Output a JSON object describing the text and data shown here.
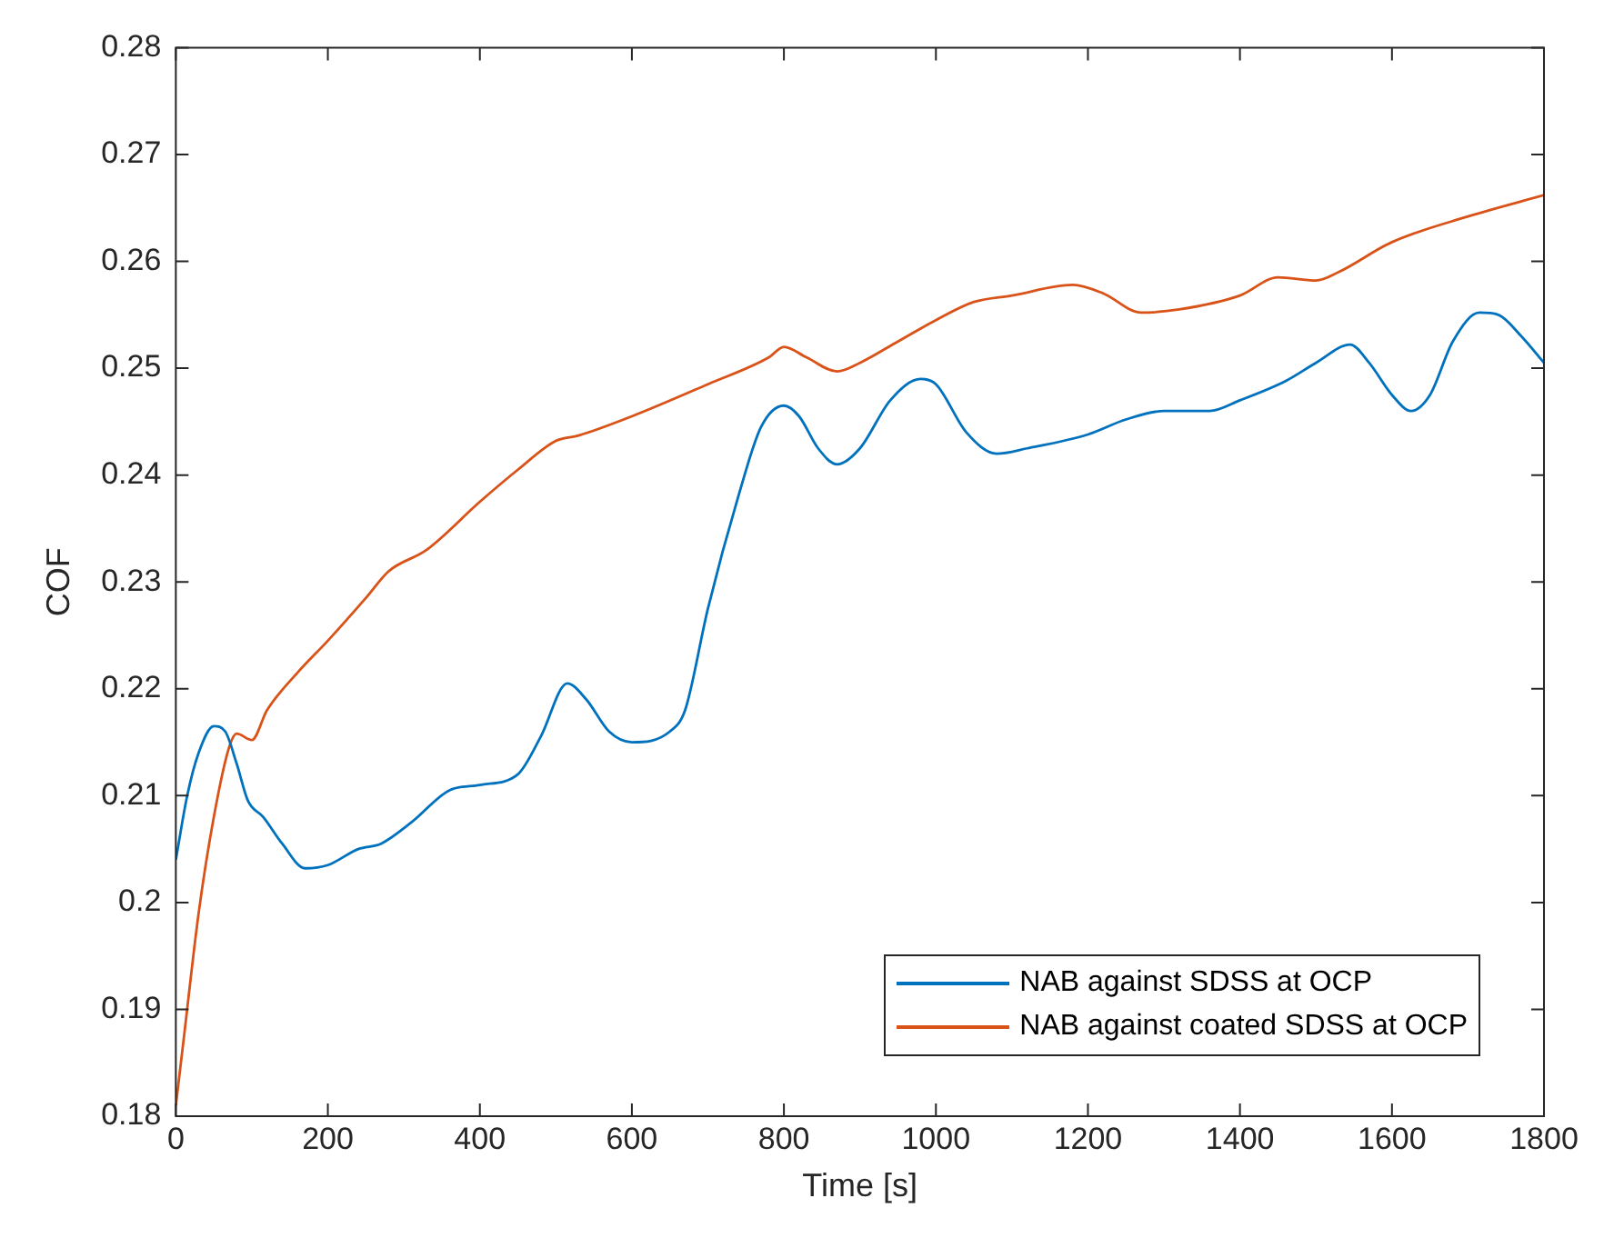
{
  "chart_data": {
    "type": "line",
    "xlabel": "Time [s]",
    "ylabel": "COF",
    "xlim": [
      0,
      1800
    ],
    "xticks": [
      0,
      200,
      400,
      600,
      800,
      1000,
      1200,
      1400,
      1600,
      1800
    ],
    "ylim": [
      0.18,
      0.28
    ],
    "yticks": [
      0.18,
      0.19,
      0.2,
      0.21,
      0.22,
      0.23,
      0.24,
      0.25,
      0.26,
      0.27,
      0.28
    ],
    "grid": false,
    "legend": "bottom right",
    "marker": "none",
    "line_style": "solid",
    "series": [
      {
        "name": "NAB against SDSS at OCP",
        "color": "#0072bd",
        "x": [
          0,
          15,
          30,
          50,
          65,
          80,
          95,
          115,
          140,
          170,
          200,
          240,
          270,
          310,
          360,
          400,
          450,
          480,
          515,
          540,
          570,
          600,
          650,
          670,
          700,
          740,
          770,
          800,
          820,
          845,
          870,
          900,
          940,
          980,
          1000,
          1040,
          1080,
          1120,
          1200,
          1250,
          1300,
          1360,
          1400,
          1460,
          1500,
          1545,
          1570,
          1600,
          1625,
          1650,
          1680,
          1715,
          1740,
          1770,
          1800
        ],
        "values": [
          0.204,
          0.21,
          0.214,
          0.2165,
          0.216,
          0.213,
          0.2095,
          0.208,
          0.2055,
          0.2032,
          0.2035,
          0.205,
          0.2055,
          0.2075,
          0.2105,
          0.211,
          0.212,
          0.2155,
          0.2205,
          0.219,
          0.216,
          0.215,
          0.216,
          0.218,
          0.2275,
          0.238,
          0.2445,
          0.2465,
          0.2455,
          0.2425,
          0.241,
          0.2425,
          0.247,
          0.249,
          0.2485,
          0.244,
          0.242,
          0.2425,
          0.2438,
          0.2452,
          0.246,
          0.246,
          0.247,
          0.2488,
          0.2505,
          0.2522,
          0.2505,
          0.2475,
          0.246,
          0.2475,
          0.2525,
          0.2552,
          0.255,
          0.253,
          0.2505
        ]
      },
      {
        "name": "NAB against coated SDSS at OCP",
        "color": "#d95319",
        "x": [
          0,
          10,
          30,
          50,
          70,
          80,
          100,
          120,
          160,
          200,
          250,
          280,
          330,
          400,
          450,
          500,
          530,
          600,
          700,
          780,
          800,
          830,
          870,
          900,
          950,
          1000,
          1050,
          1100,
          1180,
          1220,
          1270,
          1320,
          1400,
          1450,
          1500,
          1530,
          1600,
          1700,
          1800
        ],
        "values": [
          0.181,
          0.187,
          0.199,
          0.208,
          0.2145,
          0.2158,
          0.2152,
          0.218,
          0.2215,
          0.2245,
          0.2285,
          0.231,
          0.233,
          0.2375,
          0.2405,
          0.2432,
          0.2437,
          0.2455,
          0.2485,
          0.251,
          0.252,
          0.251,
          0.2497,
          0.2505,
          0.2525,
          0.2545,
          0.2562,
          0.2568,
          0.2578,
          0.257,
          0.2552,
          0.2555,
          0.2568,
          0.2585,
          0.2582,
          0.259,
          0.2618,
          0.2642,
          0.2662
        ]
      }
    ]
  }
}
